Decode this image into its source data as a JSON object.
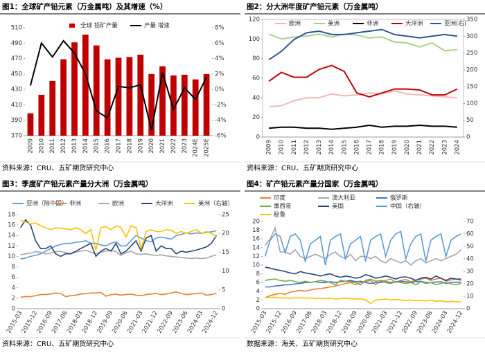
{
  "chart_data": [
    {
      "type": "bar",
      "title": "图1：全球矿产铅元素（万金属吨）及其增速（%）",
      "source": "资料来源：CRU、五矿期货研究中心",
      "categories": [
        "2009",
        "2010",
        "2011",
        "2012",
        "2013",
        "2014",
        "2015",
        "2016",
        "2017",
        "2018",
        "2019",
        "2020",
        "2021",
        "2022",
        "2023",
        "2024E",
        "2025E"
      ],
      "series": [
        {
          "name": "全球 铅矿产量",
          "type": "bar",
          "color": "#c00000",
          "values": [
            399,
            423,
            441,
            469,
            491,
            501,
            487,
            469,
            471,
            472,
            475,
            450,
            460,
            448,
            449,
            443,
            450
          ]
        },
        {
          "name": "产量 增速",
          "type": "line",
          "axis": "y2",
          "color": "#000000",
          "values": [
            0.5,
            6,
            4.2,
            6.3,
            4.7,
            2,
            -2.8,
            -3.7,
            0.4,
            0.2,
            0.6,
            -5.3,
            2.2,
            -2.6,
            0.2,
            -1.3,
            1.6
          ]
        }
      ],
      "ylim": [
        370,
        510
      ],
      "yticks": [
        370,
        390,
        410,
        430,
        450,
        470,
        490,
        510
      ],
      "y2lim": [
        -6,
        8
      ],
      "y2ticks": [
        {
          "value": -6,
          "label": "-6%"
        },
        {
          "value": -4,
          "label": "-4%"
        },
        {
          "value": -2,
          "label": "-2%"
        },
        {
          "value": 0,
          "label": "0%"
        },
        {
          "value": 2,
          "label": "2%"
        },
        {
          "value": 4,
          "label": "4%"
        },
        {
          "value": 6,
          "label": "6%"
        },
        {
          "value": 8,
          "label": "8%"
        }
      ],
      "grid": false
    },
    {
      "type": "line",
      "title": "图2：分大洲年度矿产铅元素（万金属吨）",
      "source": "资料来源：CRU、五矿期货研究中心",
      "categories": [
        "2009",
        "2010",
        "2011",
        "2012",
        "2013",
        "2014",
        "2015",
        "2016",
        "2017",
        "2018",
        "2019",
        "2020",
        "2021",
        "2022",
        "2023",
        "2024"
      ],
      "series": [
        {
          "name": "欧洲",
          "color": "#f4b6b6",
          "values": [
            31,
            32,
            37,
            40,
            40,
            44,
            42,
            43,
            45,
            44,
            47,
            44,
            43,
            42,
            41,
            40
          ]
        },
        {
          "name": "美洲",
          "color": "#a9d18e",
          "values": [
            105,
            100,
            102,
            103,
            105,
            102,
            105,
            104,
            101,
            102,
            97,
            96,
            92,
            96,
            88,
            89
          ]
        },
        {
          "name": "非洲",
          "color": "#000000",
          "values": [
            9,
            10,
            10,
            9,
            9,
            8,
            9,
            10,
            12,
            10,
            11,
            11,
            12,
            11,
            11,
            10
          ]
        },
        {
          "name": "大洋洲",
          "color": "#c00000",
          "values": [
            57,
            66,
            61,
            61,
            69,
            73,
            67,
            45,
            41,
            45,
            49,
            49,
            48,
            43,
            43,
            49
          ]
        },
        {
          "name": "亚洲(右)",
          "axis": "y2",
          "color": "#2f5597",
          "values": [
            230,
            255,
            290,
            310,
            315,
            305,
            305,
            310,
            315,
            320,
            305,
            300,
            295,
            300,
            305,
            300
          ]
        }
      ],
      "ylim": [
        0,
        120
      ],
      "yticks": [
        0,
        20,
        40,
        60,
        80,
        100,
        120
      ],
      "y2lim": [
        0,
        350
      ],
      "y2ticks": [
        0,
        50,
        100,
        150,
        200,
        250,
        300,
        350
      ],
      "grid": false
    },
    {
      "type": "line",
      "title": "图3：季度矿产铅元素产量分大洲（万金属吨）",
      "source": "资料来源：CRU、五矿期货研究中心",
      "categories": [
        "2015-03",
        null,
        null,
        "2015-12",
        null,
        null,
        "2016-09",
        null,
        null,
        "2017-06",
        null,
        null,
        "2018-03",
        null,
        null,
        "2018-12",
        null,
        null,
        "2019-09",
        null,
        null,
        "2020-06",
        null,
        null,
        "2021-03",
        null,
        null,
        "2021-12",
        null,
        null,
        "2022-09",
        null,
        null,
        "2023-06",
        null,
        null,
        "2024-03",
        null,
        null,
        "2024-12"
      ],
      "series": [
        {
          "name": "亚洲（除中国）",
          "color": "#5b9bd5",
          "values": [
            9.5,
            9.7,
            10,
            10.2,
            10.5,
            11,
            11.5,
            12,
            12.3,
            12.5,
            12.5,
            12.7,
            12.8,
            13,
            12.5,
            12.5,
            12.2,
            12,
            12.5,
            12.8,
            12,
            12,
            13,
            14,
            13.5,
            13,
            12.8,
            13.5,
            13.7,
            13.5,
            13.3,
            14,
            14.2,
            14.5,
            14.3,
            14.5,
            14.4,
            14.6,
            14.7,
            14.9
          ]
        },
        {
          "name": "非洲",
          "color": "#ed7d31",
          "values": [
            2.2,
            2.3,
            2.3,
            2.5,
            2.7,
            2.7,
            2.8,
            3,
            2.9,
            2.3,
            2.5,
            2.6,
            2.8,
            2.9,
            3,
            3,
            3.1,
            2.4,
            2.7,
            2.8,
            2.6,
            2.7,
            2.8,
            2.6,
            2.5,
            2.7,
            2.8,
            2.9,
            2.7,
            2.8,
            3,
            3.2,
            2.9,
            2.7,
            2.8,
            2.9,
            3,
            2.6,
            2.7,
            2.9
          ]
        },
        {
          "name": "欧洲",
          "color": "#a5a5a5",
          "values": [
            10.3,
            10.5,
            10.6,
            10.9,
            10.8,
            10.5,
            10.6,
            10.9,
            11,
            10.7,
            10.5,
            10.8,
            11,
            11.2,
            10.8,
            10.5,
            10.8,
            11,
            11.2,
            10.9,
            10.2,
            10.7,
            11,
            10.5,
            10.4,
            10.5,
            10.3,
            10.2,
            10.3,
            10.1,
            10,
            9.9,
            9.8,
            9.7,
            9.6,
            9.7,
            9.6,
            9.7,
            10,
            10.3
          ]
        },
        {
          "name": "大洋洲",
          "color": "#264478",
          "values": [
            15.5,
            17,
            16,
            13,
            11.5,
            11.5,
            12,
            10.5,
            10,
            10.5,
            10.5,
            11,
            11.5,
            12,
            12.5,
            10,
            11,
            11.5,
            11,
            12.5,
            10.5,
            11,
            12,
            13,
            11,
            13.5,
            14,
            11,
            12,
            11.5,
            11.5,
            10.5,
            11,
            10.8,
            11,
            11.2,
            11.5,
            11.8,
            12.5,
            14
          ]
        },
        {
          "name": "美洲（右轴）",
          "axis": "y2",
          "color": "#ffc000",
          "values": [
            23.5,
            23,
            22.5,
            22.8,
            22,
            21.5,
            21,
            21.5,
            21.3,
            21.2,
            21,
            21.5,
            21,
            20,
            21,
            15.5,
            21.5,
            21.8,
            21,
            22,
            21.5,
            19,
            22,
            21.5,
            16,
            20.5,
            21,
            20.5,
            20.5,
            21,
            20.8,
            20,
            20.5,
            20,
            20.5,
            21,
            20,
            20.5,
            20,
            19
          ]
        }
      ],
      "ylim": [
        0,
        18
      ],
      "yticks": [
        0,
        2,
        4,
        6,
        8,
        10,
        12,
        14,
        16,
        18
      ],
      "y2lim": [
        0,
        25
      ],
      "y2ticks": [
        0,
        5,
        10,
        15,
        20,
        25
      ],
      "grid": false
    },
    {
      "type": "line",
      "title": "图4：矿产铅元素产量分国家（万金属吨）",
      "source": "数据来源：海关、五矿期货研究中心",
      "categories": [
        "2015-03",
        null,
        null,
        "2015-12",
        null,
        null,
        "2016-09",
        null,
        null,
        "2017-06",
        null,
        null,
        "2018-03",
        null,
        null,
        "2018-12",
        null,
        null,
        "2019-09",
        null,
        null,
        "2020-06",
        null,
        null,
        "2021-03",
        null,
        null,
        "2021-12",
        null,
        null,
        "2022-09",
        null,
        null,
        "2023-06",
        null,
        null,
        "2024-03",
        null,
        null,
        "2024-12"
      ],
      "series": [
        {
          "name": "印度",
          "color": "#ed7d31",
          "values": [
            2.5,
            3,
            3.3,
            3.5,
            3.3,
            3.8,
            4,
            4.2,
            4,
            4.3,
            4.5,
            4.6,
            4.8,
            5,
            5.2,
            5.5,
            5.8,
            6,
            5.5,
            6,
            6.2,
            6.5,
            5.5,
            6.3,
            6.5,
            6.8,
            6,
            6.5,
            6.7,
            6.2,
            6.5,
            6.8,
            7,
            6.5,
            6.8,
            7,
            6.3,
            6.6,
            6.8,
            6.5
          ]
        },
        {
          "name": "澳大利亚",
          "color": "#a5a5a5",
          "values": [
            14.5,
            16,
            18.5,
            13,
            13,
            12.5,
            13.5,
            12,
            11.5,
            12,
            12.5,
            12,
            11.5,
            12.5,
            13,
            12,
            11.5,
            12.5,
            11,
            12,
            12,
            11.5,
            12,
            11,
            10.5,
            11.5,
            11,
            10.5,
            11,
            10,
            11,
            11.5,
            10.5,
            11,
            11.5,
            11,
            11.5,
            12,
            12.5,
            13.5
          ]
        },
        {
          "name": "俄罗斯",
          "color": "#4472c4",
          "values": [
            5,
            5,
            5.2,
            5.3,
            5.5,
            5.5,
            5.7,
            5.8,
            6,
            6,
            6.2,
            6,
            6,
            6.2,
            6,
            6.2,
            6.3,
            6.5,
            6.2,
            6.3,
            6,
            5.8,
            6,
            6,
            6.2,
            6,
            6.2,
            6.3,
            6.2,
            6,
            6.2,
            6.3,
            6,
            6,
            6.1,
            6.2,
            5.8,
            6,
            6.1,
            6
          ]
        },
        {
          "name": "墨西哥",
          "color": "#70ad47",
          "values": [
            6.5,
            6.7,
            6.8,
            6.5,
            6.3,
            6.5,
            6.2,
            6,
            6.3,
            6,
            6.2,
            6.5,
            6.3,
            6,
            5.5,
            6.5,
            6.3,
            6.2,
            6,
            5.5,
            6.5,
            6.8,
            6.3,
            6.5,
            6,
            5.8,
            6.2,
            6,
            5.8,
            6,
            5.5,
            6.2,
            5.8,
            6,
            5.5,
            5.8,
            6,
            5.7,
            5.5,
            5.8
          ]
        },
        {
          "name": "美国",
          "color": "#264478",
          "values": [
            9.5,
            9.3,
            9,
            8.8,
            8.5,
            8.2,
            8,
            8.5,
            8.2,
            8,
            7.8,
            7.5,
            7.8,
            8,
            7.5,
            7.2,
            7.5,
            7.3,
            7,
            7.2,
            7.8,
            7.5,
            7,
            7.2,
            7.5,
            7.2,
            6.8,
            7.2,
            7.3,
            7,
            6.5,
            7,
            7.2,
            6.8,
            7.5,
            7,
            6.5,
            7,
            6.8,
            6.8
          ]
        },
        {
          "name": "中国（右轴）",
          "axis": "y2",
          "color": "#5b9bd5",
          "values": [
            42,
            55,
            60,
            58,
            45,
            58,
            60,
            55,
            38,
            52,
            55,
            58,
            35,
            55,
            58,
            60,
            40,
            52,
            55,
            58,
            38,
            55,
            58,
            60,
            42,
            55,
            60,
            62,
            40,
            52,
            58,
            60,
            38,
            55,
            58,
            60,
            42,
            55,
            58,
            60
          ]
        },
        {
          "name": "秘鲁",
          "color": "#ffc000",
          "values": [
            2.5,
            2.6,
            2.6,
            2.5,
            2.5,
            2.4,
            2.5,
            2.5,
            2.4,
            2.5,
            2.3,
            2.4,
            2.3,
            2.4,
            2.2,
            2.3,
            2.4,
            2.3,
            2.2,
            2.3,
            2,
            1.2,
            2,
            2.1,
            2.2,
            2,
            2.1,
            2,
            1.9,
            2,
            1.8,
            1.9,
            1.8,
            1.9,
            1.7,
            1.8,
            1.6,
            1.7,
            1.6,
            1.6
          ]
        }
      ],
      "ylim": [
        0,
        20
      ],
      "yticks": [
        0,
        2,
        4,
        6,
        8,
        10,
        12,
        14,
        16,
        18,
        20
      ],
      "y2lim": [
        0,
        70
      ],
      "y2ticks": [
        0,
        10,
        20,
        30,
        40,
        50,
        60,
        70
      ],
      "grid": false
    }
  ]
}
